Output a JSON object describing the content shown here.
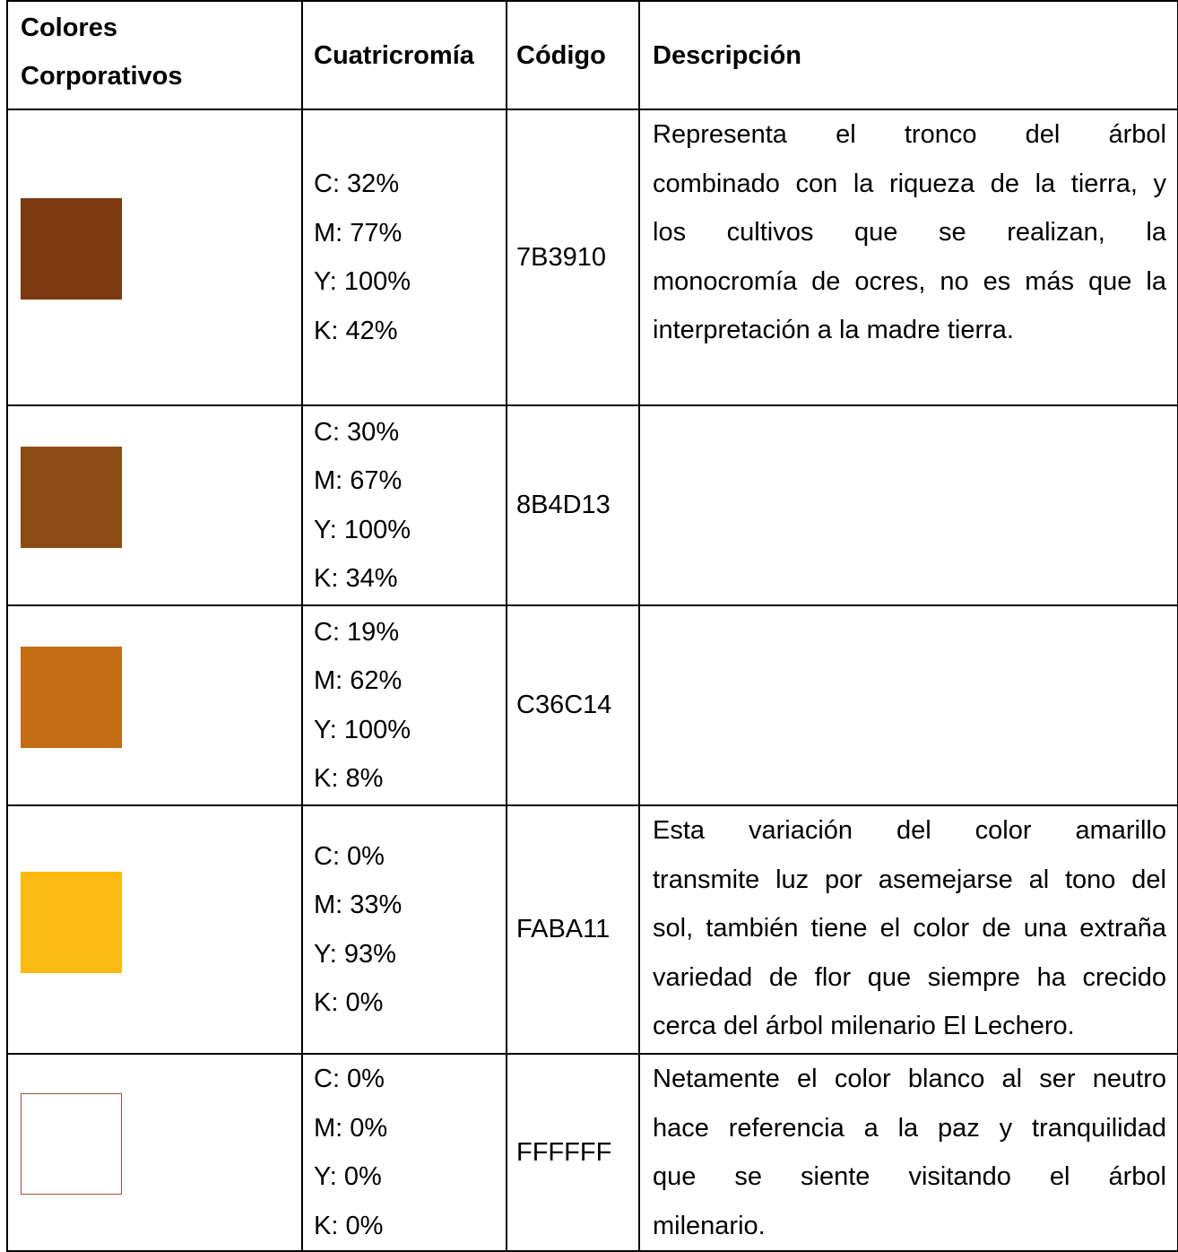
{
  "headers": {
    "colors": [
      "Colores",
      "Corporativos"
    ],
    "cmyk": "Cuatricromía",
    "code": "Código",
    "description": "Descripción"
  },
  "rows": [
    {
      "swatch_color": "#7B3910",
      "swatch_border": "",
      "cmyk": [
        "C: 32%",
        "M: 77%",
        "Y: 100%",
        "K: 42%"
      ],
      "code": "7B3910",
      "description": [
        "Representa el tronco del árbol",
        "combinado con la riqueza de la tierra, y",
        "los cultivos que se realizan, la",
        "monocromía de ocres, no es más que la",
        "interpretación a la madre tierra."
      ]
    },
    {
      "swatch_color": "#8B4D13",
      "swatch_border": "",
      "cmyk": [
        "C: 30%",
        "M: 67%",
        "Y: 100%",
        "K: 34%"
      ],
      "code": "8B4D13",
      "description": []
    },
    {
      "swatch_color": "#C36C14",
      "swatch_border": "",
      "cmyk": [
        "C: 19%",
        "M: 62%",
        "Y: 100%",
        "K: 8%"
      ],
      "code": "C36C14",
      "description": []
    },
    {
      "swatch_color": "#FABA11",
      "swatch_border": "",
      "cmyk": [
        "C: 0%",
        "M: 33%",
        "Y: 93%",
        "K: 0%"
      ],
      "code": "FABA11",
      "description": [
        "Esta variación del color amarillo",
        "transmite luz por asemejarse al tono del",
        "sol, también tiene el color de una extraña",
        "variedad de flor que siempre ha crecido",
        "cerca del árbol milenario El Lechero."
      ]
    },
    {
      "swatch_color": "#FFFFFF",
      "swatch_border": "#A0522D",
      "cmyk": [
        "C: 0%",
        "M: 0%",
        "Y: 0%",
        "K: 0%"
      ],
      "code": "FFFFFF",
      "description": [
        "Netamente el color blanco al ser neutro",
        "hace referencia a la paz y tranquilidad",
        "que se siente visitando el árbol",
        "milenario."
      ]
    }
  ]
}
